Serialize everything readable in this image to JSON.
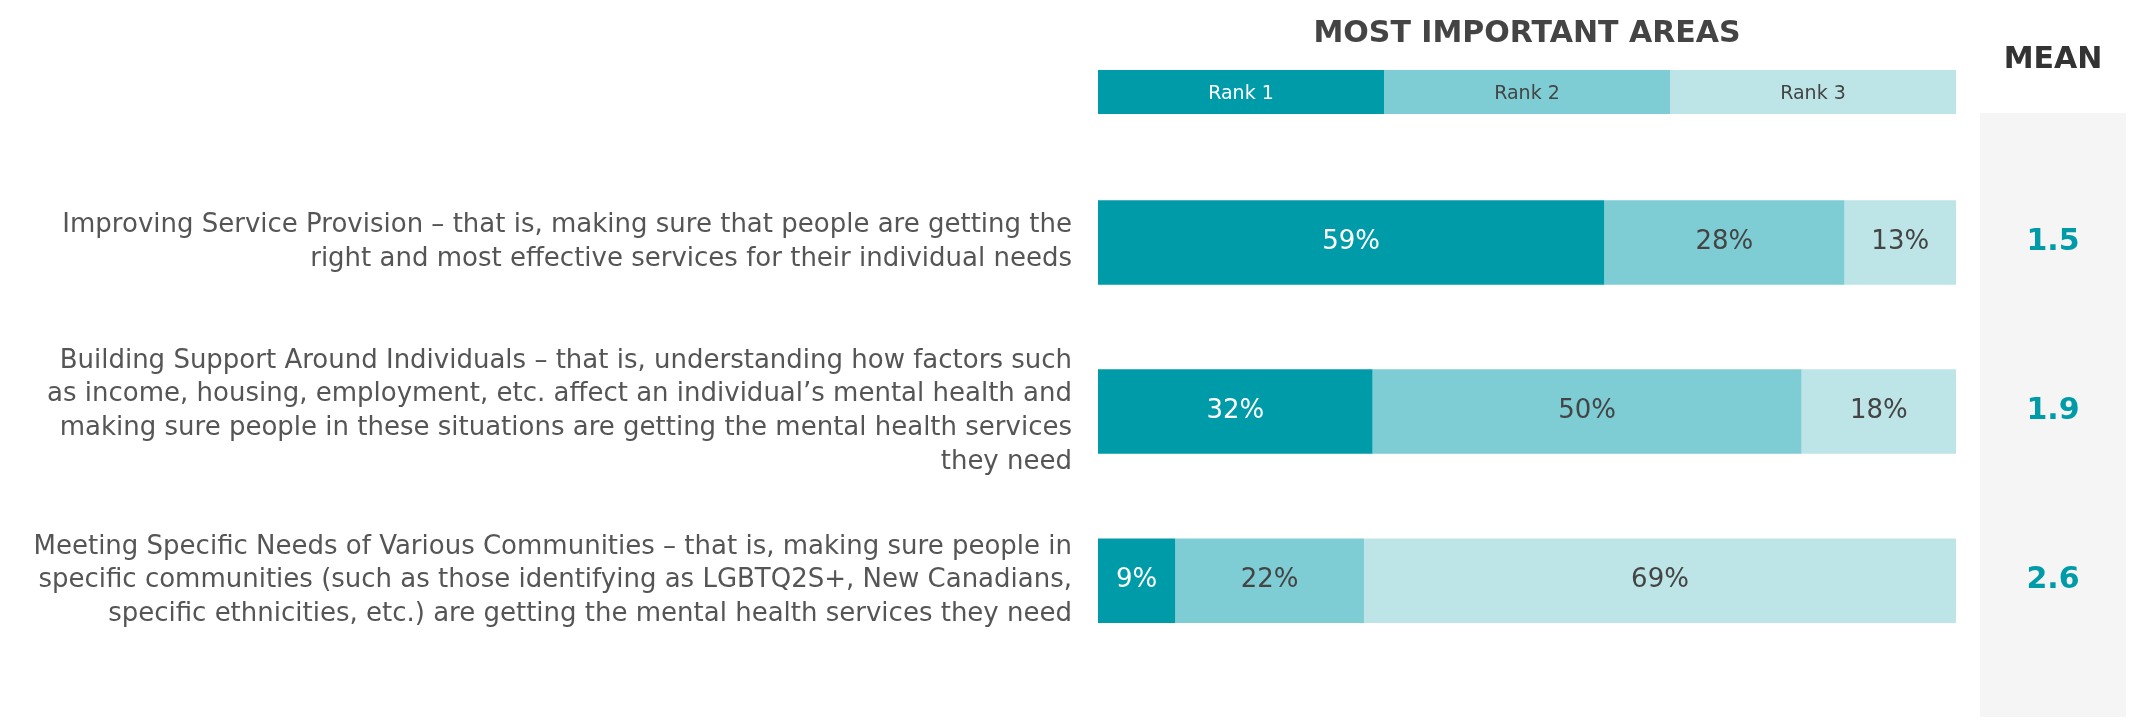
{
  "chart_data": {
    "type": "bar",
    "orientation": "horizontal",
    "stacked": true,
    "title": "MOST IMPORTANT AREAS",
    "categories": [
      "Improving Service Provision – that is, making sure that people are getting the right and most effective services for their individual needs",
      "Building Support Around Individuals – that is, understanding how factors such as income, housing, employment, etc. affect an individual’s mental health and making sure people in these situations are getting the mental health services they need",
      "Meeting Specific Needs of Various Communities – that is, making sure people in specific communities (such as those identifying as LGBTQ2S+, New Canadians, specific ethnicities, etc.) are getting the mental health services they need"
    ],
    "series": [
      {
        "name": "Rank 1",
        "color": "#009ba8",
        "values": [
          59,
          32,
          9
        ],
        "value_labels": [
          "59%",
          "32%",
          "9%"
        ]
      },
      {
        "name": "Rank 2",
        "color": "#7ecdd4",
        "values": [
          28,
          50,
          22
        ],
        "value_labels": [
          "28%",
          "50%",
          "22%"
        ]
      },
      {
        "name": "Rank 3",
        "color": "#bde5e8",
        "values": [
          13,
          18,
          69
        ],
        "value_labels": [
          "13%",
          "18%",
          "69%"
        ]
      }
    ],
    "xlim": [
      0,
      100
    ],
    "tick_labels": "y",
    "legend": "top",
    "annotations": [
      "MEAN",
      "1.5",
      "1.9",
      "2.6"
    ]
  }
}
